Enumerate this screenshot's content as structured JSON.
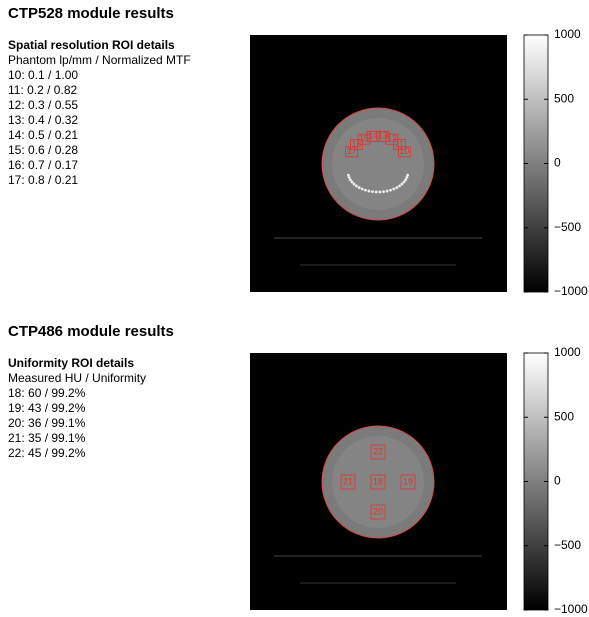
{
  "sections": [
    {
      "title": "CTP528 module results",
      "roi_header": "Spatial resolution ROI details",
      "roi_subheader": "Phantom lp/mm / Normalized MTF",
      "rows": [
        "10: 0.1 / 1.00",
        "11: 0.2 / 0.82",
        "12: 0.3 / 0.55",
        "13: 0.4 / 0.32",
        "14: 0.5 / 0.21",
        "15: 0.6 / 0.28",
        "16: 0.7 / 0.17",
        "17: 0.8 / 0.21"
      ],
      "roi_labels": [
        "10",
        "11",
        "12",
        "13",
        "14",
        "15",
        "16",
        "17"
      ],
      "colorbar": {
        "clim": [
          -1000,
          1000
        ],
        "ticks": [
          1000,
          500,
          0,
          {
            "value": -500,
            "label": "−500"
          },
          {
            "value": -1000,
            "label": "−1000"
          }
        ]
      }
    },
    {
      "title": "CTP486 module results",
      "roi_header": "Uniformity ROI details",
      "roi_subheader": "Measured HU / Uniformity",
      "rows": [
        "18: 60 / 99.2%",
        "19: 43 / 99.2%",
        "20: 36 / 99.1%",
        "21: 35 / 99.1%",
        "22: 45 / 99.2%"
      ],
      "roi_labels": [
        "18",
        "19",
        "20",
        "21",
        "22"
      ],
      "colorbar": {
        "clim": [
          -1000,
          1000
        ],
        "ticks": [
          1000,
          500,
          0,
          {
            "value": -500,
            "label": "−500"
          },
          {
            "value": -1000,
            "label": "−1000"
          }
        ]
      }
    }
  ]
}
